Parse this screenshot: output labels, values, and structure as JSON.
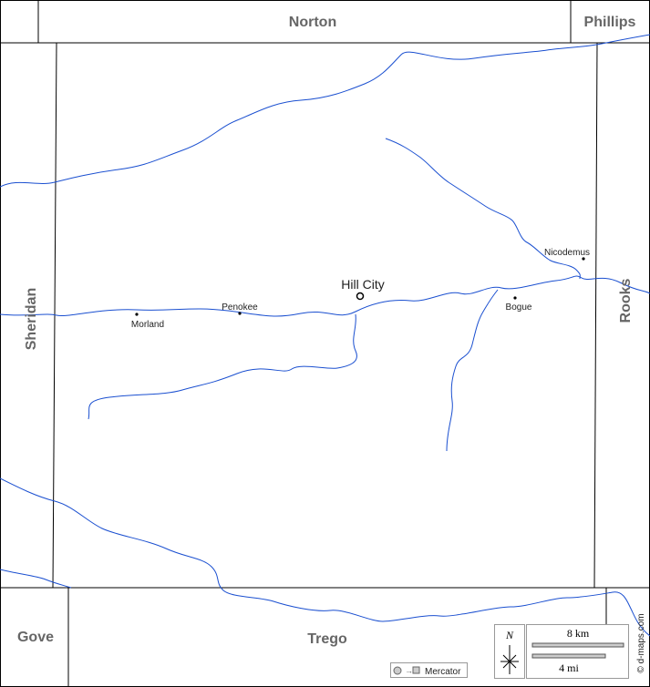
{
  "map": {
    "neighbors": {
      "north": "Norton",
      "northeast": "Phillips",
      "west": "Sheridan",
      "east": "Rooks",
      "southwest": "Gove",
      "south": "Trego"
    },
    "seat": "Hill City",
    "towns": [
      "Morland",
      "Penokee",
      "Nicodemus",
      "Bogue"
    ],
    "north_arrow": "N",
    "scale": {
      "km": "8 km",
      "mi": "4 mi"
    },
    "projection": "Mercator",
    "credit": "© d-maps.com"
  }
}
